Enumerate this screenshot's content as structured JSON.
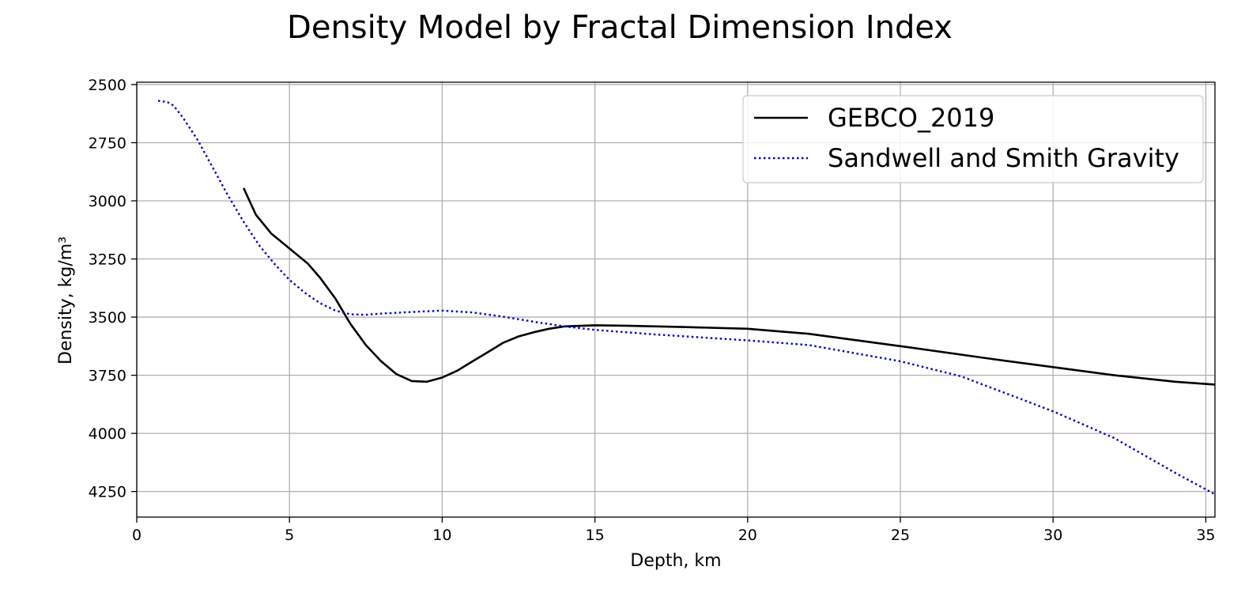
{
  "chart_data": {
    "type": "line",
    "title": "Density Model by Fractal Dimension Index",
    "xlabel": "Depth, km",
    "ylabel": "Density, kg/m³",
    "xlim": [
      0,
      35.3
    ],
    "ylim": [
      4360,
      2490
    ],
    "y_inverted": true,
    "x_ticks": [
      0,
      5,
      10,
      15,
      20,
      25,
      30,
      35
    ],
    "y_ticks": [
      2500,
      2750,
      3000,
      3250,
      3500,
      3750,
      4000,
      4250
    ],
    "grid": true,
    "legend_position": "top-right",
    "series": [
      {
        "name": "GEBCO_2019",
        "color": "#000000",
        "style": "solid",
        "x": [
          3.5,
          3.9,
          4.4,
          5.0,
          5.6,
          6.0,
          6.5,
          7.0,
          7.5,
          8.0,
          8.5,
          9.0,
          9.5,
          10.0,
          10.5,
          11.0,
          11.5,
          12.0,
          12.5,
          13.0,
          13.5,
          14.0,
          15.0,
          16.0,
          18.0,
          20.0,
          22.0,
          25.0,
          28.0,
          30.0,
          32.0,
          34.0,
          35.3
        ],
        "y": [
          2945,
          3060,
          3140,
          3205,
          3270,
          3330,
          3420,
          3530,
          3620,
          3690,
          3745,
          3775,
          3778,
          3760,
          3730,
          3690,
          3650,
          3610,
          3583,
          3565,
          3550,
          3540,
          3535,
          3537,
          3543,
          3550,
          3572,
          3625,
          3680,
          3715,
          3750,
          3778,
          3790
        ]
      },
      {
        "name": "Sandwell and Smith Gravity",
        "color": "#0000cc",
        "style": "dotted",
        "x": [
          0.7,
          1.0,
          1.2,
          1.5,
          2.0,
          2.5,
          3.0,
          3.5,
          4.0,
          4.5,
          5.0,
          5.5,
          6.0,
          6.5,
          7.0,
          7.5,
          8.0,
          9.0,
          10.0,
          11.0,
          12.0,
          13.0,
          14.0,
          15.0,
          17.0,
          20.0,
          22.0,
          25.0,
          27.0,
          30.0,
          32.0,
          34.0,
          35.3
        ],
        "y": [
          2570,
          2575,
          2590,
          2640,
          2740,
          2860,
          2980,
          3090,
          3190,
          3270,
          3340,
          3395,
          3440,
          3472,
          3488,
          3490,
          3485,
          3478,
          3472,
          3480,
          3498,
          3520,
          3540,
          3555,
          3575,
          3600,
          3620,
          3690,
          3755,
          3905,
          4020,
          4170,
          4262
        ]
      }
    ]
  }
}
